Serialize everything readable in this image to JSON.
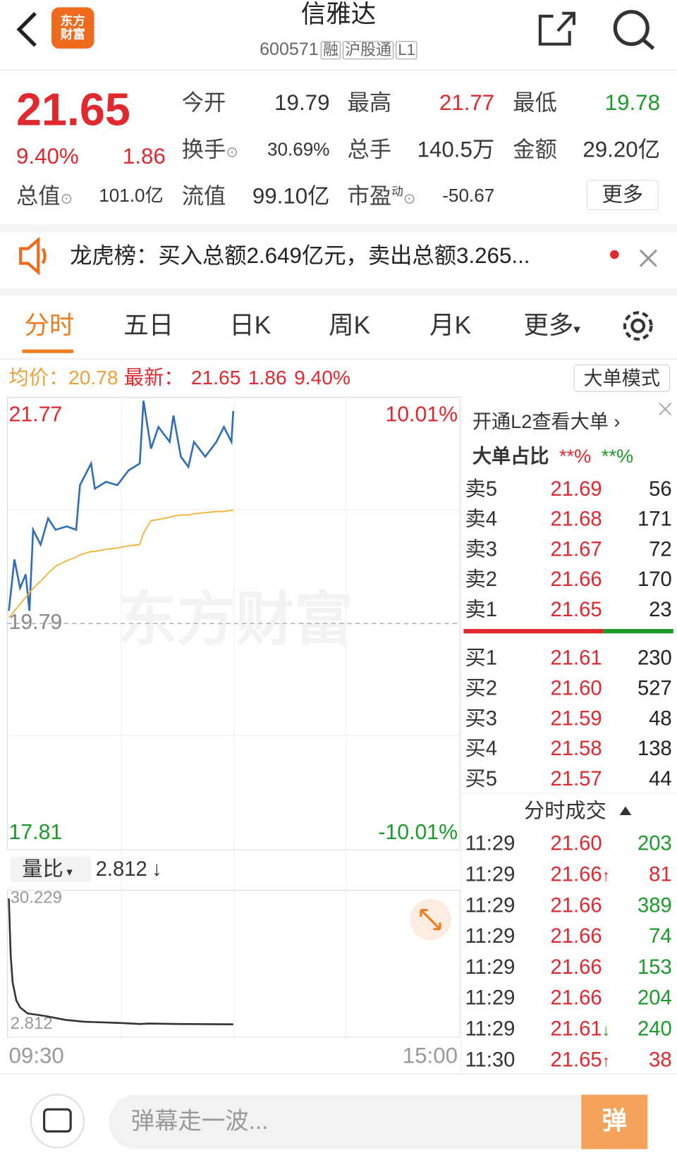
{
  "header": {
    "logo": "东方财富",
    "title": "信雅达",
    "code": "600571",
    "tags": [
      "融",
      "沪股通",
      "L1"
    ]
  },
  "quote": {
    "price": "21.65",
    "change_pct": "9.40%",
    "change": "1.86",
    "stats": [
      {
        "label": "今开",
        "value": "19.79",
        "color": "#333333"
      },
      {
        "label": "最高",
        "value": "21.77",
        "color": "#e0282e"
      },
      {
        "label": "最低",
        "value": "19.78",
        "color": "#1c9a2a"
      },
      {
        "label": "换手",
        "value": "30.69%",
        "info_icon": true
      },
      {
        "label": "总手",
        "value": "140.5万"
      },
      {
        "label": "金额",
        "value": "29.20亿"
      },
      {
        "label": "总值",
        "value": "101.0亿",
        "info_icon": true
      },
      {
        "label": "流值",
        "value": "99.10亿"
      },
      {
        "label": "市盈",
        "sup": "动",
        "value": "-50.67",
        "info_icon": true
      }
    ],
    "more": "更多"
  },
  "notice": {
    "text": "龙虎榜：买入总额2.649亿元，卖出总额3.265..."
  },
  "tabs": {
    "items": [
      "分时",
      "五日",
      "日K",
      "周K",
      "月K",
      "更多"
    ],
    "active": 0
  },
  "info_bar": {
    "avg_label": "均价：",
    "avg": "20.78",
    "latest_label": "最新：",
    "latest": "21.65",
    "change": "1.86",
    "change_pct": "9.40%",
    "mode": "大单模式"
  },
  "chart_data": [
    {
      "type": "line",
      "watermark": "东方财富",
      "x": [
        0,
        3,
        6,
        9,
        11,
        13,
        17,
        21,
        25,
        31,
        36,
        38,
        44,
        46,
        52,
        58,
        64,
        70,
        72,
        76,
        80,
        86,
        88,
        92,
        96,
        99,
        105,
        111,
        115,
        119,
        120
      ],
      "xlim": [
        0,
        240
      ],
      "ylim": [
        17.81,
        21.77
      ],
      "yticks": [
        17.81,
        19.79,
        21.77
      ],
      "y2lim": [
        -10.01,
        10.01
      ],
      "y2ticks": [
        {
          "value": -10.01,
          "label": "-10.01%"
        },
        {
          "value": 10.01,
          "label": "10.01%"
        }
      ],
      "series": [
        {
          "color": "#2f6db5",
          "values": [
            19.9,
            20.35,
            20.1,
            20.22,
            19.9,
            20.61,
            20.48,
            20.71,
            20.61,
            20.64,
            20.61,
            21.0,
            21.19,
            20.97,
            21.03,
            21.0,
            21.13,
            21.19,
            21.74,
            21.32,
            21.51,
            21.38,
            21.61,
            21.25,
            21.16,
            21.38,
            21.25,
            21.38,
            21.51,
            21.38,
            21.65
          ]
        },
        {
          "color": "#f0b43c",
          "values": [
            19.84,
            19.9,
            19.96,
            20.02,
            20.06,
            20.1,
            20.16,
            20.23,
            20.29,
            20.34,
            20.37,
            20.39,
            20.42,
            20.42,
            20.44,
            20.45,
            20.47,
            20.48,
            20.58,
            20.69,
            20.7,
            20.72,
            20.73,
            20.74,
            20.74,
            20.75,
            20.76,
            20.77,
            20.77,
            20.78,
            20.78
          ]
        }
      ]
    },
    {
      "type": "line",
      "label": "量比",
      "current": "2.812",
      "arrow": "↓",
      "x": [
        0,
        1,
        2,
        4,
        6,
        10,
        20,
        30,
        40,
        60,
        70,
        75,
        90,
        120
      ],
      "xlim": [
        0,
        240
      ],
      "xticks": [
        {
          "value": 0,
          "label": "09:30"
        },
        {
          "value": 240,
          "label": "15:00"
        }
      ],
      "ylim": [
        0,
        32
      ],
      "yticks": [
        2.812,
        30.229
      ],
      "series": [
        {
          "color": "#333333",
          "values": [
            30.2,
            18,
            12,
            8,
            6.5,
            5.2,
            4.6,
            3.8,
            3.4,
            3.1,
            2.9,
            3.0,
            2.9,
            2.812
          ]
        }
      ]
    }
  ],
  "order_book": {
    "promo": "开通L2查看大单",
    "ratio_label": "大单占比",
    "ratio_buy": "**%",
    "ratio_sell": "**%",
    "asks": [
      [
        "卖5",
        "21.69",
        "56"
      ],
      [
        "卖4",
        "21.68",
        "171"
      ],
      [
        "卖3",
        "21.67",
        "72"
      ],
      [
        "卖2",
        "21.66",
        "170"
      ],
      [
        "卖1",
        "21.65",
        "23"
      ]
    ],
    "bids": [
      [
        "买1",
        "21.61",
        "230"
      ],
      [
        "买2",
        "21.60",
        "527"
      ],
      [
        "买3",
        "21.59",
        "48"
      ],
      [
        "买4",
        "21.58",
        "138"
      ],
      [
        "买5",
        "21.57",
        "44"
      ]
    ]
  },
  "trades": {
    "title": "分时成交",
    "rows": [
      {
        "time": "11:29",
        "price": "21.60",
        "volume": "203",
        "color": "#1c9a2a"
      },
      {
        "time": "11:29",
        "price": "21.66",
        "arrow": "↑",
        "volume": "81",
        "color": "#e0282e"
      },
      {
        "time": "11:29",
        "price": "21.66",
        "volume": "389",
        "color": "#1c9a2a"
      },
      {
        "time": "11:29",
        "price": "21.66",
        "volume": "74",
        "color": "#1c9a2a"
      },
      {
        "time": "11:29",
        "price": "21.66",
        "volume": "153",
        "color": "#1c9a2a"
      },
      {
        "time": "11:29",
        "price": "21.66",
        "volume": "204",
        "color": "#1c9a2a"
      },
      {
        "time": "11:29",
        "price": "21.61",
        "arrow": "↓",
        "volume": "240",
        "color": "#1c9a2a"
      },
      {
        "time": "11:30",
        "price": "21.65",
        "arrow": "↑",
        "volume": "38",
        "color": "#e0282e"
      }
    ]
  },
  "footer": {
    "placeholder": "弹幕走一波...",
    "button": "弹"
  }
}
